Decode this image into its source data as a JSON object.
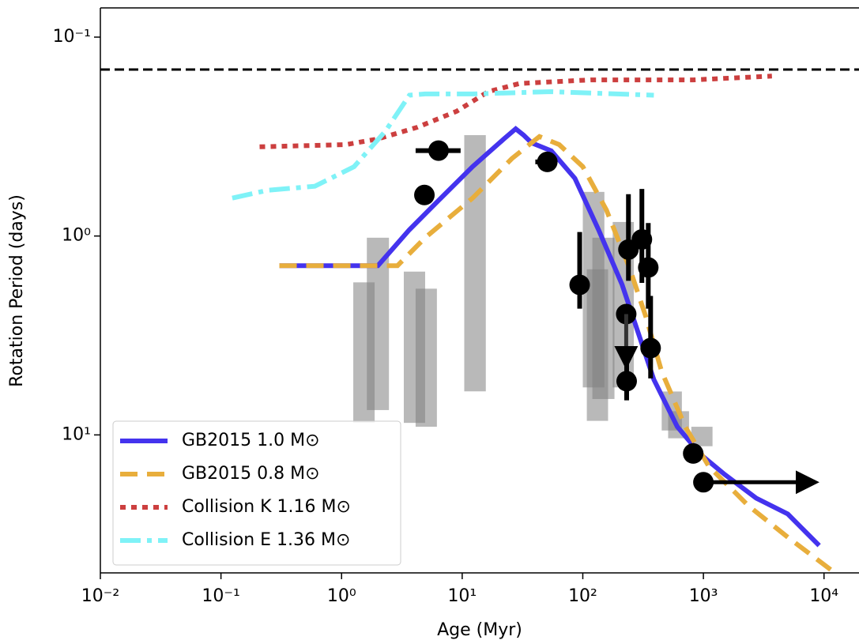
{
  "chart_data": {
    "type": "line",
    "x_label": "Age (Myr)",
    "y_label": "Rotation Period (days)",
    "xscale": "log",
    "yscale": "log",
    "y_inverted": true,
    "xlim": [
      0.01,
      19500
    ],
    "ylim": [
      0.0713,
      49.4
    ],
    "xticks": [
      {
        "value": 0.01,
        "label": "10⁻²"
      },
      {
        "value": 0.1,
        "label": "10⁻¹"
      },
      {
        "value": 1,
        "label": "10⁰"
      },
      {
        "value": 10,
        "label": "10¹"
      },
      {
        "value": 100,
        "label": "10²"
      },
      {
        "value": 1000,
        "label": "10³"
      },
      {
        "value": 10000,
        "label": "10⁴"
      }
    ],
    "yticks": [
      {
        "value": 0.1,
        "label": "10⁻¹"
      },
      {
        "value": 1,
        "label": "10⁰"
      },
      {
        "value": 10,
        "label": "10¹"
      }
    ],
    "legend": "lower left",
    "hline": {
      "value": 0.1455,
      "color": "#000000"
    },
    "series": [
      {
        "name": "GB2015 1.0 M⊙",
        "color": "#4433ee",
        "style": "solid",
        "x": [
          0.305,
          2.0,
          3.65,
          6.66,
          12.2,
          22.2,
          27.8,
          32.3,
          37.6,
          54.8,
          86,
          135,
          212,
          287,
          388,
          608,
          956,
          1500,
          2740,
          5010,
          6760,
          9120
        ],
        "values": [
          1.41,
          1.41,
          0.93,
          0.645,
          0.448,
          0.325,
          0.289,
          0.311,
          0.34,
          0.373,
          0.513,
          0.93,
          1.76,
          3.05,
          5.27,
          9.1,
          12.6,
          15.8,
          20.8,
          25,
          30,
          36
        ]
      },
      {
        "name": "GB2015 0.8 M⊙",
        "color": "#e8ae3c",
        "style": "dashed",
        "x": [
          0.305,
          2.91,
          4.93,
          12.2,
          25.8,
          43.7,
          63.7,
          100,
          157,
          246,
          333,
          451,
          708,
          1110,
          2360,
          5010,
          12300
        ],
        "values": [
          1.41,
          1.41,
          1.02,
          0.645,
          0.408,
          0.316,
          0.347,
          0.448,
          0.74,
          1.47,
          2.54,
          4.8,
          9.1,
          14.4,
          22.7,
          32.7,
          49.4
        ]
      },
      {
        "name": "Collision K 1.16 M⊙",
        "color": "#cc3f3f",
        "style": "dotted",
        "x": [
          0.209,
          1.09,
          2.0,
          4.24,
          9.0,
          16.4,
          30,
          116,
          823,
          3700
        ],
        "values": [
          0.356,
          0.347,
          0.325,
          0.284,
          0.236,
          0.188,
          0.171,
          0.164,
          0.164,
          0.157
        ]
      },
      {
        "name": "Collision E  1.36 M⊙",
        "color": "#7ff2f7",
        "style": "dashdot",
        "x": [
          0.124,
          0.243,
          0.6,
          1.27,
          2.32,
          3.65,
          4.93,
          12.2,
          54.8,
          388
        ],
        "values": [
          0.645,
          0.589,
          0.562,
          0.448,
          0.296,
          0.196,
          0.193,
          0.193,
          0.188,
          0.196
        ]
      }
    ],
    "bands": {
      "color": "#808080",
      "ranges": [
        {
          "x": [
            1.25,
            1.88
          ],
          "y": [
            1.71,
            8.7
          ]
        },
        {
          "x": [
            1.62,
            2.47
          ],
          "y": [
            1.02,
            7.5
          ]
        },
        {
          "x": [
            3.28,
            4.93
          ],
          "y": [
            1.51,
            8.7
          ]
        },
        {
          "x": [
            4.11,
            6.17
          ],
          "y": [
            1.84,
            9.1
          ]
        },
        {
          "x": [
            10.4,
            15.7
          ],
          "y": [
            0.311,
            6.04
          ]
        },
        {
          "x": [
            100,
            151
          ],
          "y": [
            0.6,
            5.77
          ]
        },
        {
          "x": [
            108,
            162
          ],
          "y": [
            1.47,
            8.5
          ]
        },
        {
          "x": [
            120,
            183
          ],
          "y": [
            1.02,
            6.6
          ]
        },
        {
          "x": [
            177,
            265
          ],
          "y": [
            0.85,
            5.77
          ]
        },
        {
          "x": [
            451,
            663
          ],
          "y": [
            6.05,
            9.5
          ]
        },
        {
          "x": [
            510,
            760
          ],
          "y": [
            7.6,
            10.4
          ]
        },
        {
          "x": [
            794,
            1190
          ],
          "y": [
            9.1,
            11.4
          ]
        }
      ]
    },
    "points": {
      "color": "#000000",
      "x": [
        4.86,
        6.37,
        50.8,
        94.2,
        239,
        309,
        349,
        229,
        231,
        365,
        823,
        1000
      ],
      "values": [
        0.622,
        0.372,
        0.424,
        1.76,
        1.17,
        1.04,
        1.44,
        2.47,
        5.37,
        3.66,
        12.4,
        17.3
      ],
      "xerr": [
        null,
        [
          4.11,
          9.7
        ],
        [
          40.4,
          54.8
        ],
        null,
        null,
        null,
        null,
        null,
        null,
        null,
        null,
        null
      ],
      "yerr": [
        null,
        null,
        null,
        [
          0.955,
          2.32
        ],
        [
          0.616,
          1.68
        ],
        [
          0.58,
          1.72
        ],
        [
          0.86,
          2.32
        ],
        null,
        [
          4.2,
          6.7
        ],
        [
          2.0,
          5.2
        ],
        null,
        null
      ]
    },
    "arrows": [
      {
        "x": [
          229,
          229
        ],
        "y": [
          2.47,
          4.1
        ]
      },
      {
        "x": [
          1000,
          7300
        ],
        "y": [
          17.3,
          17.3
        ]
      }
    ]
  }
}
